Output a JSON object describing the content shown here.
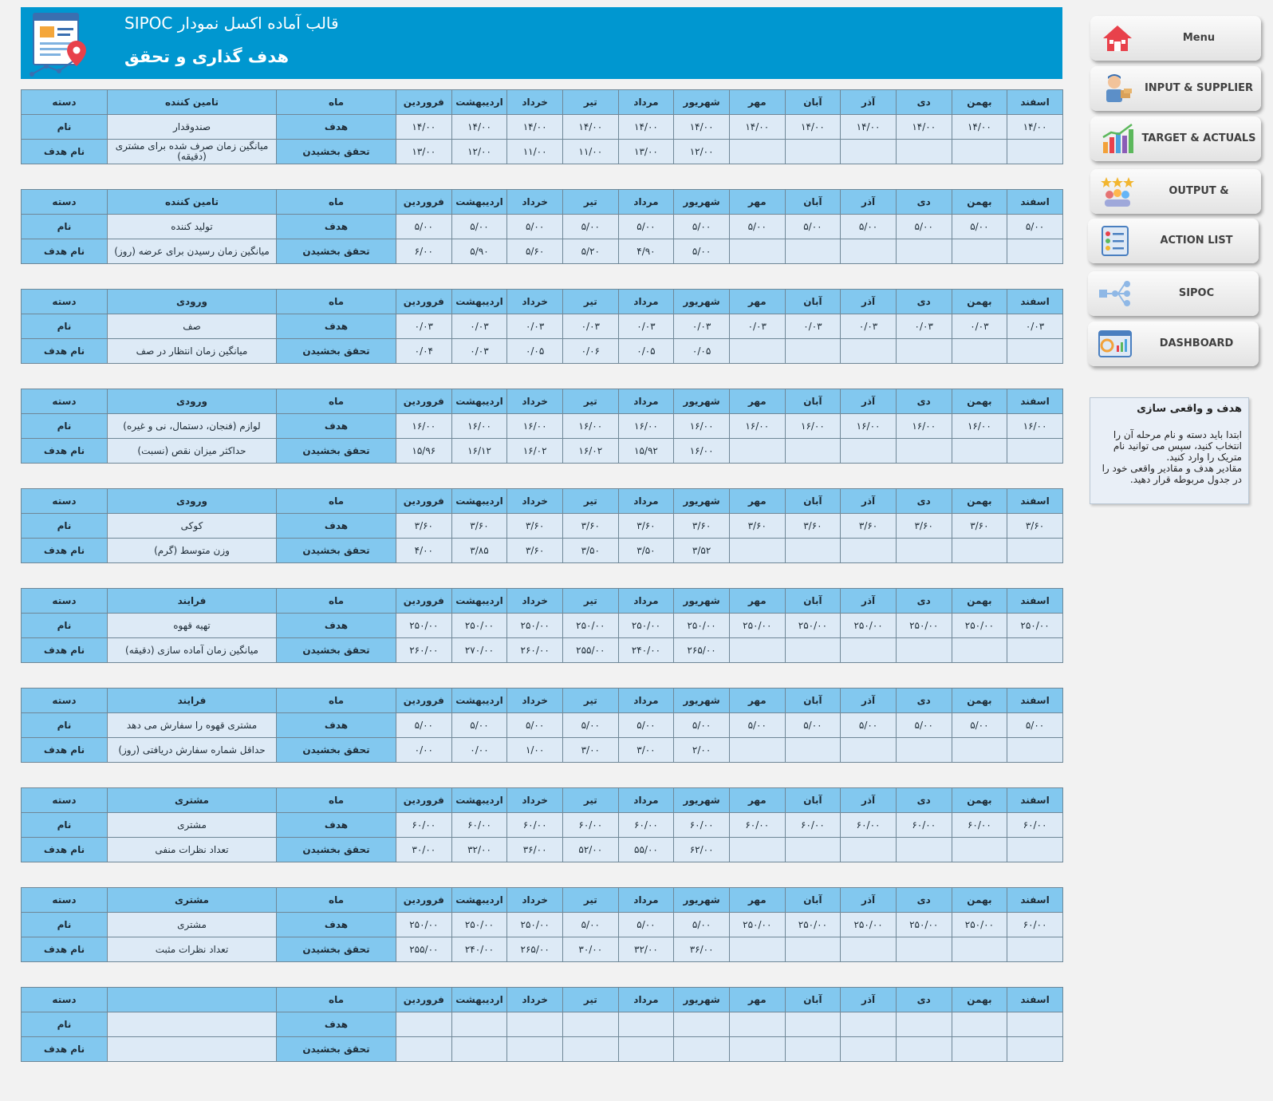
{
  "header": {
    "subtitle": "قالب آماده اکسل نمودار SIPOC",
    "title": "هدف گذاری و تحقق",
    "logo_icon": "sipoc-logo-icon"
  },
  "table_labels": {
    "category": "دسته",
    "name": "نام",
    "target_name": "نام هدف",
    "month": "ماه",
    "target": "هدف",
    "actual": "تحقق بخشیدن"
  },
  "months": [
    "فروردین",
    "اردیبهشت",
    "خرداد",
    "تیر",
    "مرداد",
    "شهریور",
    "مهر",
    "آبان",
    "آذر",
    "دی",
    "بهمن",
    "اسفند"
  ],
  "blocks": [
    {
      "category": "تامین کننده",
      "name": "صندوقدار",
      "target_name": "میانگین زمان صرف شده برای مشتری (دقیقه)",
      "targets": [
        "۱۴/۰۰",
        "۱۴/۰۰",
        "۱۴/۰۰",
        "۱۴/۰۰",
        "۱۴/۰۰",
        "۱۴/۰۰",
        "۱۴/۰۰",
        "۱۴/۰۰",
        "۱۴/۰۰",
        "۱۴/۰۰",
        "۱۴/۰۰",
        "۱۴/۰۰"
      ],
      "actuals": [
        "۱۳/۰۰",
        "۱۲/۰۰",
        "۱۱/۰۰",
        "۱۱/۰۰",
        "۱۳/۰۰",
        "۱۲/۰۰",
        "",
        "",
        "",
        "",
        "",
        ""
      ]
    },
    {
      "category": "تامین کننده",
      "name": "تولید کننده",
      "target_name": "میانگین زمان رسیدن برای عرضه (روز)",
      "targets": [
        "۵/۰۰",
        "۵/۰۰",
        "۵/۰۰",
        "۵/۰۰",
        "۵/۰۰",
        "۵/۰۰",
        "۵/۰۰",
        "۵/۰۰",
        "۵/۰۰",
        "۵/۰۰",
        "۵/۰۰",
        "۵/۰۰"
      ],
      "actuals": [
        "۶/۰۰",
        "۵/۹۰",
        "۵/۶۰",
        "۵/۲۰",
        "۴/۹۰",
        "۵/۰۰",
        "",
        "",
        "",
        "",
        "",
        ""
      ]
    },
    {
      "category": "ورودی",
      "name": "صف",
      "target_name": "میانگین زمان انتظار در صف",
      "targets": [
        "۰/۰۳",
        "۰/۰۳",
        "۰/۰۳",
        "۰/۰۳",
        "۰/۰۳",
        "۰/۰۳",
        "۰/۰۳",
        "۰/۰۳",
        "۰/۰۳",
        "۰/۰۳",
        "۰/۰۳",
        "۰/۰۳"
      ],
      "actuals": [
        "۰/۰۴",
        "۰/۰۳",
        "۰/۰۵",
        "۰/۰۶",
        "۰/۰۵",
        "۰/۰۵",
        "",
        "",
        "",
        "",
        "",
        ""
      ]
    },
    {
      "category": "ورودی",
      "name": "لوازم (فنجان، دستمال، نی و غیره)",
      "target_name": "حداکثر میزان نقص (نسبت)",
      "targets": [
        "۱۶/۰۰",
        "۱۶/۰۰",
        "۱۶/۰۰",
        "۱۶/۰۰",
        "۱۶/۰۰",
        "۱۶/۰۰",
        "۱۶/۰۰",
        "۱۶/۰۰",
        "۱۶/۰۰",
        "۱۶/۰۰",
        "۱۶/۰۰",
        "۱۶/۰۰"
      ],
      "actuals": [
        "۱۵/۹۶",
        "۱۶/۱۲",
        "۱۶/۰۲",
        "۱۶/۰۲",
        "۱۵/۹۲",
        "۱۶/۰۰",
        "",
        "",
        "",
        "",
        "",
        ""
      ]
    },
    {
      "category": "ورودی",
      "name": "کوکی",
      "target_name": "وزن متوسط (گرم)",
      "targets": [
        "۳/۶۰",
        "۳/۶۰",
        "۳/۶۰",
        "۳/۶۰",
        "۳/۶۰",
        "۳/۶۰",
        "۳/۶۰",
        "۳/۶۰",
        "۳/۶۰",
        "۳/۶۰",
        "۳/۶۰",
        "۳/۶۰"
      ],
      "actuals": [
        "۴/۰۰",
        "۳/۸۵",
        "۳/۶۰",
        "۳/۵۰",
        "۳/۵۰",
        "۳/۵۲",
        "",
        "",
        "",
        "",
        "",
        ""
      ]
    },
    {
      "category": "فرایند",
      "name": "تهیه قهوه",
      "target_name": "میانگین زمان آماده سازی (دقیقه)",
      "targets": [
        "۲۵۰/۰۰",
        "۲۵۰/۰۰",
        "۲۵۰/۰۰",
        "۲۵۰/۰۰",
        "۲۵۰/۰۰",
        "۲۵۰/۰۰",
        "۲۵۰/۰۰",
        "۲۵۰/۰۰",
        "۲۵۰/۰۰",
        "۲۵۰/۰۰",
        "۲۵۰/۰۰",
        "۲۵۰/۰۰"
      ],
      "actuals": [
        "۲۶۰/۰۰",
        "۲۷۰/۰۰",
        "۲۶۰/۰۰",
        "۲۵۵/۰۰",
        "۲۴۰/۰۰",
        "۲۶۵/۰۰",
        "",
        "",
        "",
        "",
        "",
        ""
      ]
    },
    {
      "category": "فرایند",
      "name": "مشتری قهوه را سفارش می دهد",
      "target_name": "حداقل شماره سفارش دریافتی (روز)",
      "targets": [
        "۵/۰۰",
        "۵/۰۰",
        "۵/۰۰",
        "۵/۰۰",
        "۵/۰۰",
        "۵/۰۰",
        "۵/۰۰",
        "۵/۰۰",
        "۵/۰۰",
        "۵/۰۰",
        "۵/۰۰",
        "۵/۰۰"
      ],
      "actuals": [
        "۰/۰۰",
        "۰/۰۰",
        "۱/۰۰",
        "۳/۰۰",
        "۳/۰۰",
        "۲/۰۰",
        "",
        "",
        "",
        "",
        "",
        ""
      ]
    },
    {
      "category": "مشتری",
      "name": "مشتری",
      "target_name": "تعداد نظرات منفی",
      "targets": [
        "۶۰/۰۰",
        "۶۰/۰۰",
        "۶۰/۰۰",
        "۶۰/۰۰",
        "۶۰/۰۰",
        "۶۰/۰۰",
        "۶۰/۰۰",
        "۶۰/۰۰",
        "۶۰/۰۰",
        "۶۰/۰۰",
        "۶۰/۰۰",
        "۶۰/۰۰"
      ],
      "actuals": [
        "۳۰/۰۰",
        "۳۲/۰۰",
        "۳۶/۰۰",
        "۵۲/۰۰",
        "۵۵/۰۰",
        "۶۲/۰۰",
        "",
        "",
        "",
        "",
        "",
        ""
      ]
    },
    {
      "category": "مشتری",
      "name": "مشتری",
      "target_name": "تعداد نظرات مثبت",
      "targets": [
        "۲۵۰/۰۰",
        "۲۵۰/۰۰",
        "۲۵۰/۰۰",
        "۵/۰۰",
        "۵/۰۰",
        "۵/۰۰",
        "۲۵۰/۰۰",
        "۲۵۰/۰۰",
        "۲۵۰/۰۰",
        "۲۵۰/۰۰",
        "۲۵۰/۰۰",
        "۶۰/۰۰"
      ],
      "actuals": [
        "۲۵۵/۰۰",
        "۲۴۰/۰۰",
        "۲۶۵/۰۰",
        "۳۰/۰۰",
        "۳۲/۰۰",
        "۳۶/۰۰",
        "",
        "",
        "",
        "",
        "",
        ""
      ]
    },
    {
      "category": "",
      "name": "",
      "target_name": "",
      "targets": [
        "",
        "",
        "",
        "",
        "",
        "",
        "",
        "",
        "",
        "",
        "",
        ""
      ],
      "actuals": [
        "",
        "",
        "",
        "",
        "",
        "",
        "",
        "",
        "",
        "",
        "",
        ""
      ]
    }
  ],
  "menu": [
    {
      "label": "Menu",
      "icon": "home-icon"
    },
    {
      "label": "INPUT & SUPPLIER",
      "icon": "supplier-person-icon"
    },
    {
      "label": "TARGET & ACTUALS",
      "icon": "bar-chart-trend-icon"
    },
    {
      "label": "OUTPUT & CUSTOMER",
      "icon": "customers-stars-icon"
    },
    {
      "label": "ACTION LIST",
      "icon": "checklist-icon"
    },
    {
      "label": "SIPOC",
      "icon": "flow-diagram-icon"
    },
    {
      "label": "DASHBOARD",
      "icon": "dashboard-window-icon"
    }
  ],
  "note": {
    "title": "هدف و واقعی سازی",
    "line1": "ابتدا باید دسته و نام مرحله آن را انتخاب کنید، سپس می توانید نام متریک را وارد کنید.",
    "line2": "مقادیر هدف و مقادیر واقعی خود را در جدول مربوطه قرار دهید."
  }
}
